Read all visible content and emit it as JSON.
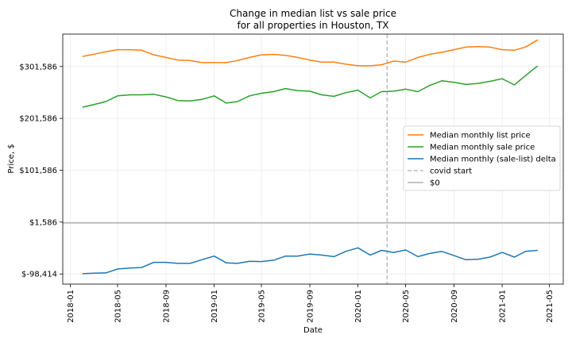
{
  "chart_data": {
    "type": "line",
    "title_line1": "Change in median list vs sale price",
    "title_line2": "for all properties in Houston, TX",
    "xlabel": "Date",
    "ylabel": "Price, $",
    "x_ticks": [
      "2018-01",
      "2018-05",
      "2018-09",
      "2019-01",
      "2019-05",
      "2019-09",
      "2020-01",
      "2020-05",
      "2020-09",
      "2021-01",
      "2021-05"
    ],
    "y_ticks": [
      -98414,
      1586,
      101586,
      201586,
      301586
    ],
    "y_tick_labels": [
      "$-98,414",
      "$1,586",
      "$101,586",
      "$201,586",
      "$301,586"
    ],
    "xlim": [
      "2017-12-13",
      "2021-06-05"
    ],
    "ylim": [
      -118000,
      364000
    ],
    "grid": true,
    "legend_position": "center-right",
    "dates": [
      "2018-02",
      "2018-03",
      "2018-04",
      "2018-05",
      "2018-06",
      "2018-07",
      "2018-08",
      "2018-09",
      "2018-10",
      "2018-11",
      "2018-12",
      "2019-01",
      "2019-02",
      "2019-03",
      "2019-04",
      "2019-05",
      "2019-06",
      "2019-07",
      "2019-08",
      "2019-09",
      "2019-10",
      "2019-11",
      "2019-12",
      "2020-01",
      "2020-02",
      "2020-03",
      "2020-04",
      "2020-05",
      "2020-06",
      "2020-07",
      "2020-08",
      "2020-09",
      "2020-10",
      "2020-11",
      "2020-12",
      "2021-01",
      "2021-02",
      "2021-03",
      "2021-04"
    ],
    "series": [
      {
        "name": "Median monthly list price",
        "color": "#ff7f0e",
        "values": [
          321000,
          325000,
          330000,
          334000,
          334000,
          333000,
          324000,
          319000,
          314000,
          313000,
          309000,
          309000,
          309000,
          313000,
          319000,
          324000,
          325000,
          323000,
          319000,
          314000,
          310000,
          310000,
          306000,
          303000,
          303000,
          305000,
          312000,
          310000,
          319000,
          325000,
          329000,
          334000,
          339000,
          340000,
          339000,
          334000,
          333000,
          339000,
          353000
        ]
      },
      {
        "name": "Median monthly sale price",
        "color": "#2ca02c",
        "values": [
          223000,
          228000,
          234000,
          245000,
          247000,
          247000,
          248000,
          243000,
          236000,
          235000,
          238000,
          245000,
          231000,
          234000,
          245000,
          250000,
          253000,
          259000,
          255000,
          254000,
          247000,
          244000,
          251000,
          256000,
          241000,
          253000,
          254000,
          258000,
          253000,
          265000,
          274000,
          271000,
          267000,
          269000,
          273000,
          278000,
          266000,
          284000,
          303000
        ]
      },
      {
        "name": "Median monthly (sale-list) delta",
        "color": "#1f77b4",
        "values": [
          -98000,
          -97000,
          -96500,
          -89000,
          -87000,
          -86000,
          -76000,
          -76000,
          -78000,
          -78000,
          -71000,
          -64000,
          -77000,
          -78000,
          -74000,
          -74500,
          -72000,
          -64000,
          -64000,
          -60000,
          -62000,
          -65000,
          -55000,
          -48000,
          -62000,
          -53000,
          -57000,
          -52000,
          -65000,
          -59000,
          -55000,
          -63000,
          -71000,
          -70000,
          -66000,
          -57000,
          -66000,
          -55000,
          -53000
        ]
      }
    ],
    "covid_start_date": "2020-03-15",
    "covid_line_label": "covid start",
    "zero_line_label": "$0",
    "zero_line_value": 0,
    "colors": {
      "covid_line": "#bbbbbb",
      "zero_line": "#b0b0b0",
      "grid": "#ebebeb"
    }
  }
}
